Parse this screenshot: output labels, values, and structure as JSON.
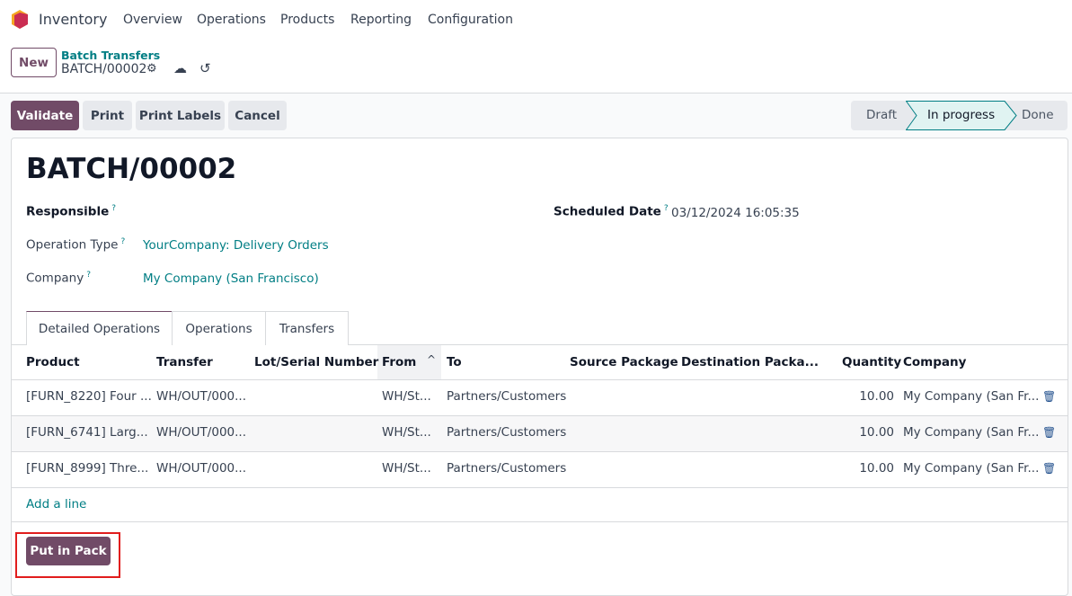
{
  "nav": {
    "app": "Inventory",
    "menu": [
      "Overview",
      "Operations",
      "Products",
      "Reporting",
      "Configuration"
    ]
  },
  "control": {
    "new": "New",
    "breadcrumb_parent": "Batch Transfers",
    "breadcrumb_current": "BATCH/00002"
  },
  "actions": {
    "validate": "Validate",
    "print": "Print",
    "print_labels": "Print Labels",
    "cancel": "Cancel"
  },
  "status": {
    "steps": [
      "Draft",
      "In progress",
      "Done"
    ],
    "current": "In progress"
  },
  "form": {
    "title": "BATCH/00002",
    "responsible_label": "Responsible",
    "scheduled_label": "Scheduled Date",
    "scheduled_value": "03/12/2024 16:05:35",
    "optype_label": "Operation Type",
    "optype_value": "YourCompany: Delivery Orders",
    "company_label": "Company",
    "company_value": "My Company (San Francisco)",
    "help": "?"
  },
  "tabs": [
    "Detailed Operations",
    "Operations",
    "Transfers"
  ],
  "table": {
    "headers": [
      "Product",
      "Transfer",
      "Lot/Serial Number",
      "From",
      "To",
      "Source Package",
      "Destination Packa...",
      "Quantity",
      "Company"
    ],
    "rows": [
      {
        "product": "[FURN_8220] Four ...",
        "transfer": "WH/OUT/000...",
        "from": "WH/St...",
        "to": "Partners/Customers",
        "qty": "10.00",
        "company": "My Company (San Fr..."
      },
      {
        "product": "[FURN_6741] Larg...",
        "transfer": "WH/OUT/000...",
        "from": "WH/St...",
        "to": "Partners/Customers",
        "qty": "10.00",
        "company": "My Company (San Fr..."
      },
      {
        "product": "[FURN_8999] Thre...",
        "transfer": "WH/OUT/000...",
        "from": "WH/St...",
        "to": "Partners/Customers",
        "qty": "10.00",
        "company": "My Company (San Fr..."
      }
    ],
    "add_line": "Add a line"
  },
  "footer": {
    "put_in_pack": "Put in Pack"
  },
  "colors": {
    "primary": "#714b67",
    "link": "#017e84",
    "highlight": "#e11d1d"
  }
}
